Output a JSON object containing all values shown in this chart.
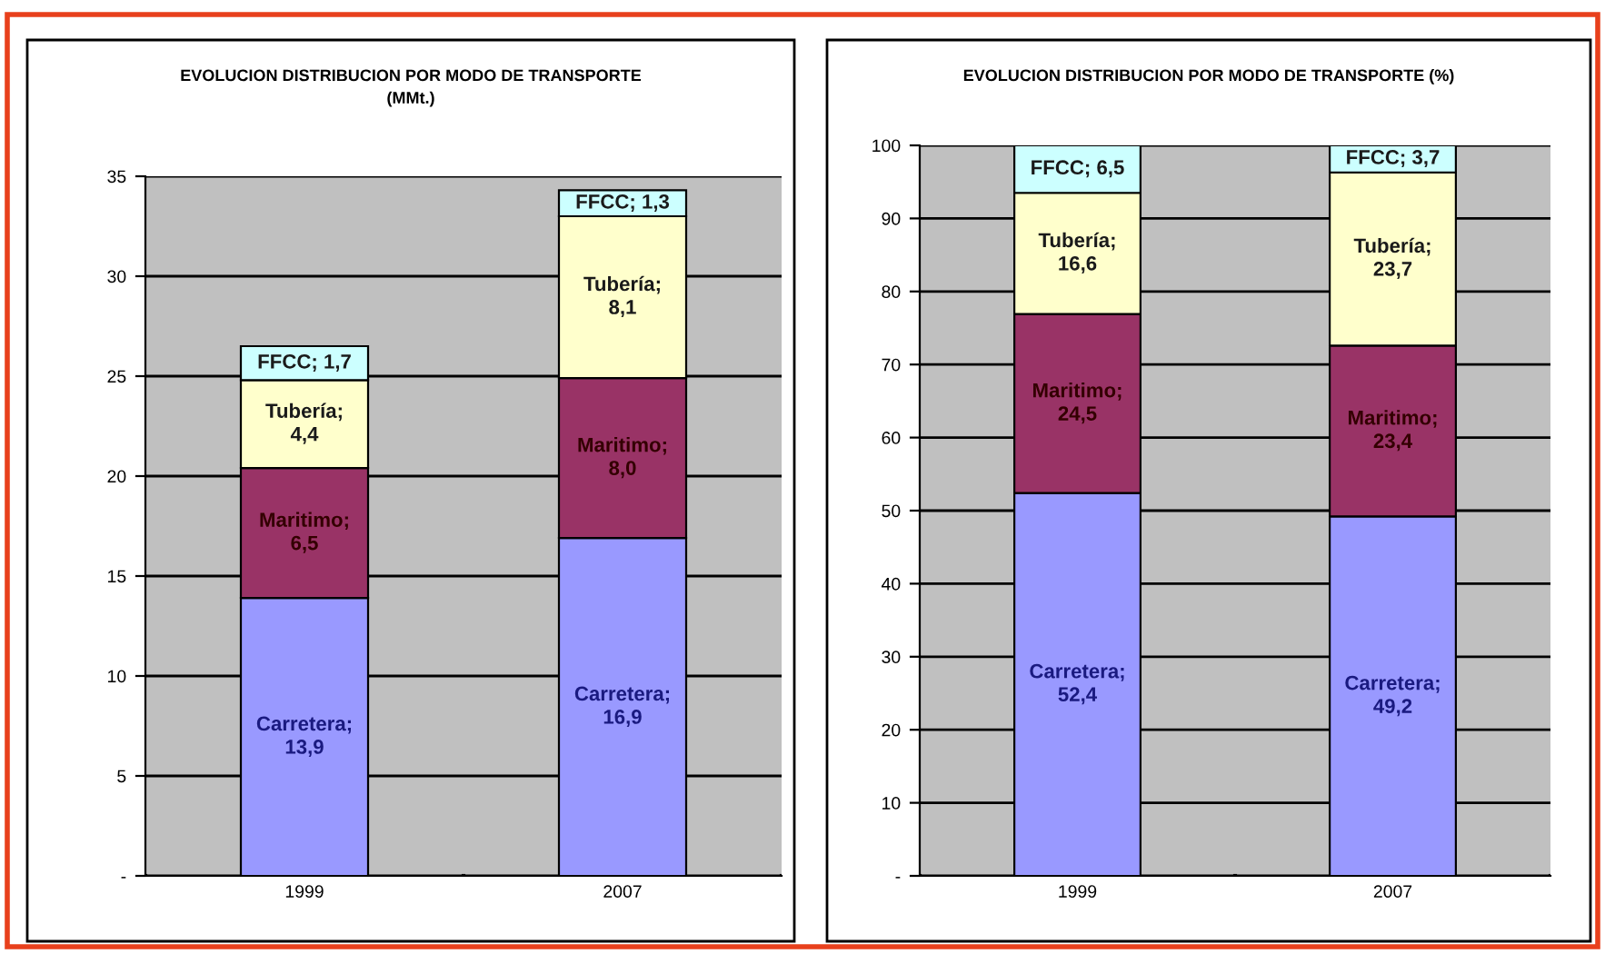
{
  "chart_data": [
    {
      "type": "bar",
      "title": "EVOLUCION DISTRIBUCION POR MODO DE TRANSPORTE\n(MMt.)",
      "categories": [
        "1999",
        "2007"
      ],
      "stacked": true,
      "series": [
        {
          "color": "#9999ff",
          "values": [
            13.9,
            16.9
          ],
          "value_labels": [
            "Carretera; 13,9",
            "Carretera; 16,9"
          ]
        },
        {
          "color": "#993366",
          "values": [
            6.5,
            8.0
          ],
          "value_labels": [
            "Maritimo; 6,5",
            "Maritimo; 8,0"
          ]
        },
        {
          "color": "#ffffcc",
          "values": [
            4.4,
            8.1
          ],
          "value_labels": [
            "Tubería; 4,4",
            "Tubería; 8,1"
          ]
        },
        {
          "color": "#ccffff",
          "values": [
            1.7,
            1.3
          ],
          "value_labels": [
            "FFCC; 1,7",
            "FFCC; 1,3"
          ]
        }
      ],
      "ylim": [
        0,
        35
      ],
      "yticks": [
        {
          "value": 0,
          "label": "-"
        },
        5,
        10,
        15,
        20,
        25,
        30,
        35
      ],
      "grid": "y"
    },
    {
      "type": "bar",
      "title": "EVOLUCION DISTRIBUCION POR MODO DE TRANSPORTE (%)",
      "categories": [
        "1999",
        "2007"
      ],
      "stacked": true,
      "series": [
        {
          "color": "#9999ff",
          "values": [
            52.4,
            49.2
          ],
          "value_labels": [
            "Carretera; 52,4",
            "Carretera; 49,2"
          ]
        },
        {
          "color": "#993366",
          "values": [
            24.5,
            23.4
          ],
          "value_labels": [
            "Maritimo; 24,5",
            "Maritimo; 23,4"
          ]
        },
        {
          "color": "#ffffcc",
          "values": [
            16.6,
            23.7
          ],
          "value_labels": [
            "Tubería; 16,6",
            "Tubería; 23,7"
          ]
        },
        {
          "color": "#ccffff",
          "values": [
            6.5,
            3.7
          ],
          "value_labels": [
            "FFCC; 6,5",
            "FFCC; 3,7"
          ]
        }
      ],
      "ylim": [
        0,
        100
      ],
      "yticks": [
        {
          "value": 0,
          "label": "-"
        },
        10,
        20,
        30,
        40,
        50,
        60,
        70,
        80,
        90,
        100
      ],
      "grid": "y"
    }
  ]
}
